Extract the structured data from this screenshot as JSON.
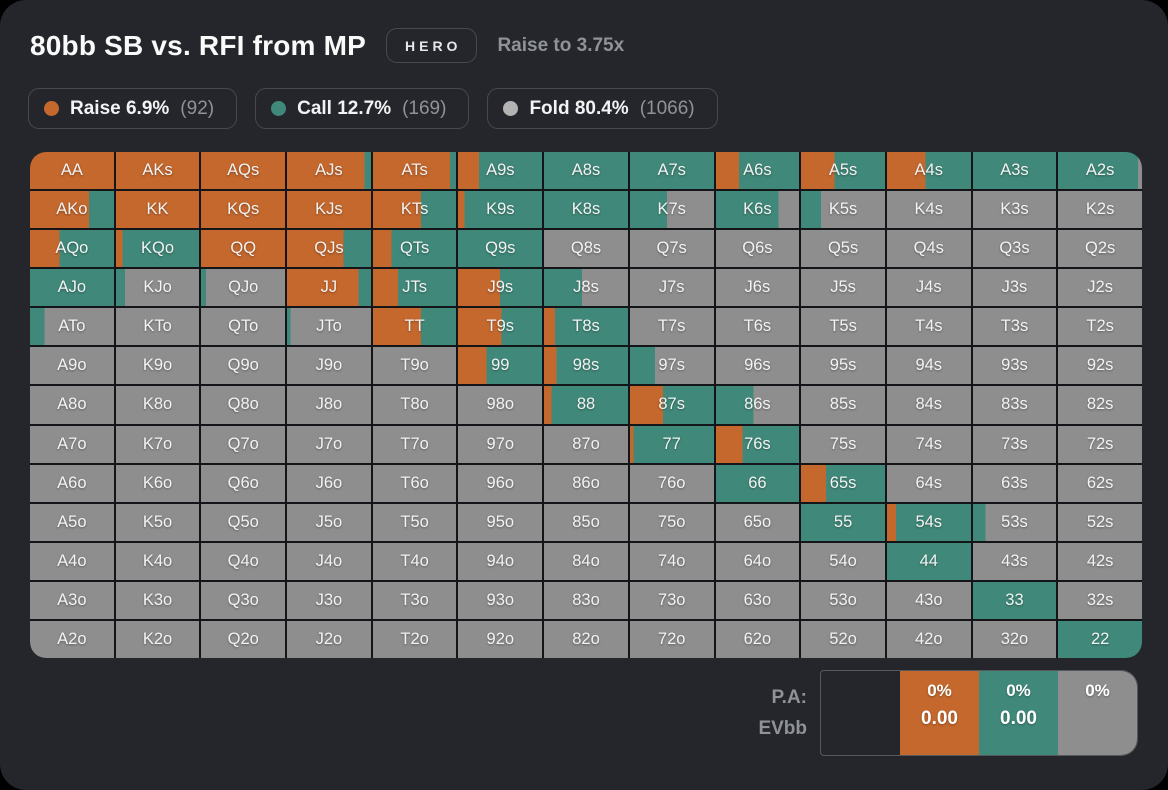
{
  "header": {
    "title": "80bb SB vs. RFI from MP",
    "badge": "HERO",
    "subtitle": "Raise to 3.75x"
  },
  "colors": {
    "raise": "#c4682e",
    "call": "#40897a",
    "fold": "#8e8e8e",
    "fold_legend_dot": "#b3b3b3"
  },
  "legend": [
    {
      "action": "raise",
      "label": "Raise 6.9%",
      "count": "(92)"
    },
    {
      "action": "call",
      "label": "Call 12.7%",
      "count": "(169)"
    },
    {
      "action": "fold",
      "label": "Fold 80.4%",
      "count": "(1066)"
    }
  ],
  "summary": {
    "row_label_1": "P.A:",
    "row_label_2": "EVbb",
    "columns": [
      {
        "action": "none",
        "pa": "",
        "ev": ""
      },
      {
        "action": "raise",
        "pa": "0%",
        "ev": "0.00"
      },
      {
        "action": "call",
        "pa": "0%",
        "ev": "0.00"
      },
      {
        "action": "fold",
        "pa": "0%",
        "ev": ""
      }
    ]
  },
  "chart_data": {
    "type": "heatmap",
    "title": "80bb SB vs. RFI from MP",
    "legend_position": "top",
    "grid": "13x13 poker hand matrix",
    "actions_order_left_to_right": [
      "raise",
      "call",
      "fold"
    ],
    "cells_format": [
      "hand",
      "raise_pct",
      "call_pct",
      "fold_pct"
    ],
    "cells": [
      [
        "AA",
        100,
        0,
        0
      ],
      [
        "AKs",
        100,
        0,
        0
      ],
      [
        "AQs",
        100,
        0,
        0
      ],
      [
        "AJs",
        92,
        8,
        0
      ],
      [
        "ATs",
        93,
        7,
        0
      ],
      [
        "A9s",
        25,
        75,
        0
      ],
      [
        "A8s",
        0,
        100,
        0
      ],
      [
        "A7s",
        0,
        100,
        0
      ],
      [
        "A6s",
        28,
        72,
        0
      ],
      [
        "A5s",
        40,
        60,
        0
      ],
      [
        "A4s",
        46,
        54,
        0
      ],
      [
        "A3s",
        0,
        100,
        0
      ],
      [
        "A2s",
        0,
        95,
        5
      ],
      [
        "AKo",
        70,
        30,
        0
      ],
      [
        "KK",
        100,
        0,
        0
      ],
      [
        "KQs",
        100,
        0,
        0
      ],
      [
        "KJs",
        100,
        0,
        0
      ],
      [
        "KTs",
        58,
        42,
        0
      ],
      [
        "K9s",
        8,
        92,
        0
      ],
      [
        "K8s",
        0,
        100,
        0
      ],
      [
        "K7s",
        0,
        44,
        56
      ],
      [
        "K6s",
        0,
        75,
        25
      ],
      [
        "K5s",
        0,
        24,
        76
      ],
      [
        "K4s",
        0,
        0,
        100
      ],
      [
        "K3s",
        0,
        0,
        100
      ],
      [
        "K2s",
        0,
        0,
        100
      ],
      [
        "AQo",
        35,
        65,
        0
      ],
      [
        "KQo",
        8,
        92,
        0
      ],
      [
        "QQ",
        100,
        0,
        0
      ],
      [
        "QJs",
        67,
        33,
        0
      ],
      [
        "QTs",
        22,
        78,
        0
      ],
      [
        "Q9s",
        0,
        100,
        0
      ],
      [
        "Q8s",
        0,
        0,
        100
      ],
      [
        "Q7s",
        0,
        0,
        100
      ],
      [
        "Q6s",
        0,
        0,
        100
      ],
      [
        "Q5s",
        0,
        0,
        100
      ],
      [
        "Q4s",
        0,
        0,
        100
      ],
      [
        "Q3s",
        0,
        0,
        100
      ],
      [
        "Q2s",
        0,
        0,
        100
      ],
      [
        "AJo",
        0,
        100,
        0
      ],
      [
        "KJo",
        0,
        11,
        89
      ],
      [
        "QJo",
        0,
        6,
        94
      ],
      [
        "JJ",
        85,
        15,
        0
      ],
      [
        "JTs",
        30,
        70,
        0
      ],
      [
        "J9s",
        50,
        50,
        0
      ],
      [
        "J8s",
        0,
        45,
        55
      ],
      [
        "J7s",
        0,
        0,
        100
      ],
      [
        "J6s",
        0,
        0,
        100
      ],
      [
        "J5s",
        0,
        0,
        100
      ],
      [
        "J4s",
        0,
        0,
        100
      ],
      [
        "J3s",
        0,
        0,
        100
      ],
      [
        "J2s",
        0,
        0,
        100
      ],
      [
        "ATo",
        0,
        17,
        83
      ],
      [
        "KTo",
        0,
        0,
        100
      ],
      [
        "QTo",
        0,
        0,
        100
      ],
      [
        "JTo",
        0,
        4,
        96
      ],
      [
        "TT",
        58,
        42,
        0
      ],
      [
        "T9s",
        52,
        48,
        0
      ],
      [
        "T8s",
        13,
        87,
        0
      ],
      [
        "T7s",
        0,
        0,
        100
      ],
      [
        "T6s",
        0,
        0,
        100
      ],
      [
        "T5s",
        0,
        0,
        100
      ],
      [
        "T4s",
        0,
        0,
        100
      ],
      [
        "T3s",
        0,
        0,
        100
      ],
      [
        "T2s",
        0,
        0,
        100
      ],
      [
        "A9o",
        0,
        0,
        100
      ],
      [
        "K9o",
        0,
        0,
        100
      ],
      [
        "Q9o",
        0,
        0,
        100
      ],
      [
        "J9o",
        0,
        0,
        100
      ],
      [
        "T9o",
        0,
        0,
        100
      ],
      [
        "99",
        34,
        66,
        0
      ],
      [
        "98s",
        15,
        85,
        0
      ],
      [
        "97s",
        0,
        30,
        70
      ],
      [
        "96s",
        0,
        0,
        100
      ],
      [
        "95s",
        0,
        0,
        100
      ],
      [
        "94s",
        0,
        0,
        100
      ],
      [
        "93s",
        0,
        0,
        100
      ],
      [
        "92s",
        0,
        0,
        100
      ],
      [
        "A8o",
        0,
        0,
        100
      ],
      [
        "K8o",
        0,
        0,
        100
      ],
      [
        "Q8o",
        0,
        0,
        100
      ],
      [
        "J8o",
        0,
        0,
        100
      ],
      [
        "T8o",
        0,
        0,
        100
      ],
      [
        "98o",
        0,
        0,
        100
      ],
      [
        "88",
        9,
        91,
        0
      ],
      [
        "87s",
        39,
        61,
        0
      ],
      [
        "86s",
        0,
        45,
        55
      ],
      [
        "85s",
        0,
        0,
        100
      ],
      [
        "84s",
        0,
        0,
        100
      ],
      [
        "83s",
        0,
        0,
        100
      ],
      [
        "82s",
        0,
        0,
        100
      ],
      [
        "A7o",
        0,
        0,
        100
      ],
      [
        "K7o",
        0,
        0,
        100
      ],
      [
        "Q7o",
        0,
        0,
        100
      ],
      [
        "J7o",
        0,
        0,
        100
      ],
      [
        "T7o",
        0,
        0,
        100
      ],
      [
        "97o",
        0,
        0,
        100
      ],
      [
        "87o",
        0,
        0,
        100
      ],
      [
        "77",
        4,
        96,
        0
      ],
      [
        "76s",
        32,
        68,
        0
      ],
      [
        "75s",
        0,
        0,
        100
      ],
      [
        "74s",
        0,
        0,
        100
      ],
      [
        "73s",
        0,
        0,
        100
      ],
      [
        "72s",
        0,
        0,
        100
      ],
      [
        "A6o",
        0,
        0,
        100
      ],
      [
        "K6o",
        0,
        0,
        100
      ],
      [
        "Q6o",
        0,
        0,
        100
      ],
      [
        "J6o",
        0,
        0,
        100
      ],
      [
        "T6o",
        0,
        0,
        100
      ],
      [
        "96o",
        0,
        0,
        100
      ],
      [
        "86o",
        0,
        0,
        100
      ],
      [
        "76o",
        0,
        0,
        100
      ],
      [
        "66",
        0,
        100,
        0
      ],
      [
        "65s",
        30,
        70,
        0
      ],
      [
        "64s",
        0,
        0,
        100
      ],
      [
        "63s",
        0,
        0,
        100
      ],
      [
        "62s",
        0,
        0,
        100
      ],
      [
        "A5o",
        0,
        0,
        100
      ],
      [
        "K5o",
        0,
        0,
        100
      ],
      [
        "Q5o",
        0,
        0,
        100
      ],
      [
        "J5o",
        0,
        0,
        100
      ],
      [
        "T5o",
        0,
        0,
        100
      ],
      [
        "95o",
        0,
        0,
        100
      ],
      [
        "85o",
        0,
        0,
        100
      ],
      [
        "75o",
        0,
        0,
        100
      ],
      [
        "65o",
        0,
        0,
        100
      ],
      [
        "55",
        0,
        100,
        0
      ],
      [
        "54s",
        11,
        89,
        0
      ],
      [
        "53s",
        0,
        15,
        85
      ],
      [
        "52s",
        0,
        0,
        100
      ],
      [
        "A4o",
        0,
        0,
        100
      ],
      [
        "K4o",
        0,
        0,
        100
      ],
      [
        "Q4o",
        0,
        0,
        100
      ],
      [
        "J4o",
        0,
        0,
        100
      ],
      [
        "T4o",
        0,
        0,
        100
      ],
      [
        "94o",
        0,
        0,
        100
      ],
      [
        "84o",
        0,
        0,
        100
      ],
      [
        "74o",
        0,
        0,
        100
      ],
      [
        "64o",
        0,
        0,
        100
      ],
      [
        "54o",
        0,
        0,
        100
      ],
      [
        "44",
        0,
        100,
        0
      ],
      [
        "43s",
        0,
        0,
        100
      ],
      [
        "42s",
        0,
        0,
        100
      ],
      [
        "A3o",
        0,
        0,
        100
      ],
      [
        "K3o",
        0,
        0,
        100
      ],
      [
        "Q3o",
        0,
        0,
        100
      ],
      [
        "J3o",
        0,
        0,
        100
      ],
      [
        "T3o",
        0,
        0,
        100
      ],
      [
        "93o",
        0,
        0,
        100
      ],
      [
        "83o",
        0,
        0,
        100
      ],
      [
        "73o",
        0,
        0,
        100
      ],
      [
        "63o",
        0,
        0,
        100
      ],
      [
        "53o",
        0,
        0,
        100
      ],
      [
        "43o",
        0,
        0,
        100
      ],
      [
        "33",
        0,
        100,
        0
      ],
      [
        "32s",
        0,
        0,
        100
      ],
      [
        "A2o",
        0,
        0,
        100
      ],
      [
        "K2o",
        0,
        0,
        100
      ],
      [
        "Q2o",
        0,
        0,
        100
      ],
      [
        "J2o",
        0,
        0,
        100
      ],
      [
        "T2o",
        0,
        0,
        100
      ],
      [
        "92o",
        0,
        0,
        100
      ],
      [
        "82o",
        0,
        0,
        100
      ],
      [
        "72o",
        0,
        0,
        100
      ],
      [
        "62o",
        0,
        0,
        100
      ],
      [
        "52o",
        0,
        0,
        100
      ],
      [
        "42o",
        0,
        0,
        100
      ],
      [
        "32o",
        0,
        0,
        100
      ],
      [
        "22",
        0,
        100,
        0
      ]
    ]
  }
}
